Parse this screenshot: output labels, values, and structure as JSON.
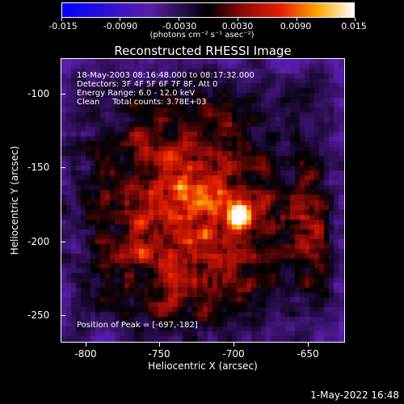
{
  "colorbar": {
    "labels": [
      "-0.015",
      "-0.0090",
      "-0.0030",
      "0.0030",
      "0.0090",
      "0.015"
    ],
    "unit": "(photons cm⁻² s⁻¹ asec⁻²)"
  },
  "title": "Reconstructed RHESSI Image",
  "info": {
    "time": "18-May-2003 08:16:48.000 to 08:17:32.000",
    "detectors": "Detectors: 3F 4F 5F 6F 7F 8F, Att 0",
    "energy": "Energy Range: 6.0 - 12.0 keV",
    "clean": "Clean     Total counts: 3.78E+03",
    "peak": "Position of Peak = [-697,-182]"
  },
  "axes": {
    "xlabel": "Heliocentric X (arcsec)",
    "ylabel": "Heliocentric Y (arcsec)",
    "xticks": [
      "-800",
      "-750",
      "-700",
      "-650"
    ],
    "yticks": [
      "-100",
      "-150",
      "-200",
      "-250"
    ]
  },
  "timestamp": "1-May-2022 16:48"
}
